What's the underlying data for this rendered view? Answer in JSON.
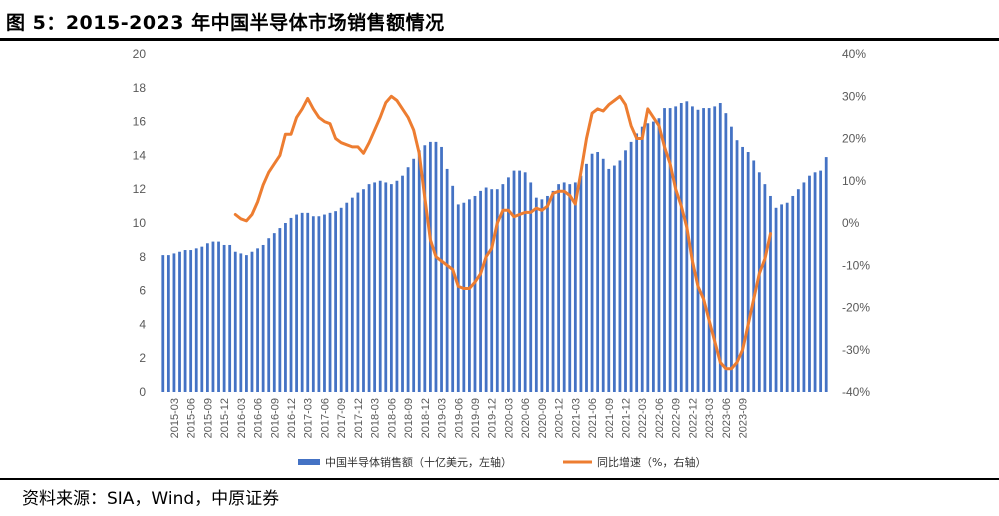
{
  "title": "图 5：2015-2023 年中国半导体市场销售额情况",
  "source": "资料来源：SIA，Wind，中原证券",
  "chart_data": {
    "type": "bar+line",
    "left_axis": {
      "min": 0,
      "max": 20,
      "ticks": [
        "0",
        "2",
        "4",
        "6",
        "8",
        "10",
        "12",
        "14",
        "16",
        "18",
        "20"
      ]
    },
    "right_axis": {
      "min": -0.4,
      "max": 0.4,
      "ticks": [
        "-40%",
        "-30%",
        "-20%",
        "-10%",
        "0%",
        "10%",
        "20%",
        "30%",
        "40%"
      ]
    },
    "x_labels": [
      "2015-03",
      "2015-06",
      "2015-09",
      "2015-12",
      "2016-03",
      "2016-06",
      "2016-09",
      "2016-12",
      "2017-03",
      "2017-06",
      "2017-09",
      "2017-12",
      "2018-03",
      "2018-06",
      "2018-09",
      "2018-12",
      "2019-03",
      "2019-06",
      "2019-09",
      "2019-12",
      "2020-03",
      "2020-06",
      "2020-09",
      "2020-12",
      "2021-03",
      "2021-06",
      "2021-09",
      "2021-12",
      "2022-03",
      "2022-06",
      "2022-09",
      "2022-12",
      "2023-03",
      "2023-06",
      "2023-09"
    ],
    "series": [
      {
        "name": "中国半导体销售额（十亿美元，左轴）",
        "axis": "left",
        "kind": "bar",
        "color": "#4472C4",
        "start": "2015-01",
        "values": [
          8.1,
          8.1,
          8.2,
          8.3,
          8.4,
          8.4,
          8.5,
          8.6,
          8.8,
          8.9,
          8.9,
          8.7,
          8.7,
          8.3,
          8.2,
          8.1,
          8.3,
          8.5,
          8.7,
          9.1,
          9.4,
          9.7,
          10.0,
          10.3,
          10.5,
          10.6,
          10.6,
          10.4,
          10.4,
          10.5,
          10.6,
          10.7,
          10.9,
          11.2,
          11.5,
          11.8,
          12.0,
          12.3,
          12.4,
          12.5,
          12.4,
          12.3,
          12.5,
          12.8,
          13.3,
          13.8,
          14.3,
          14.6,
          14.8,
          14.8,
          14.5,
          13.2,
          12.2,
          11.1,
          11.2,
          11.4,
          11.6,
          11.9,
          12.1,
          12.0,
          12.0,
          12.3,
          12.7,
          13.1,
          13.1,
          13.0,
          12.4,
          11.5,
          11.4,
          11.6,
          11.9,
          12.3,
          12.4,
          12.3,
          12.4,
          12.8,
          13.5,
          14.1,
          14.2,
          13.8,
          13.2,
          13.4,
          13.7,
          14.3,
          14.8,
          15.3,
          15.7,
          15.9,
          16.0,
          16.2,
          16.8,
          16.8,
          16.9,
          17.1,
          17.2,
          16.9,
          16.7,
          16.8,
          16.8,
          16.9,
          17.1,
          16.5,
          15.7,
          14.9,
          14.5,
          14.2,
          13.7,
          13.0,
          12.3,
          11.6,
          10.9,
          11.1,
          11.2,
          11.6,
          12.0,
          12.4,
          12.8,
          13.0,
          13.1,
          13.9
        ]
      },
      {
        "name": "同比增速（%，右轴）",
        "axis": "right",
        "kind": "line",
        "color": "#ED7D31",
        "points": [
          [
            "2016-02",
            0.02
          ],
          [
            "2016-03",
            0.01
          ],
          [
            "2016-04",
            0.005
          ],
          [
            "2016-05",
            0.02
          ],
          [
            "2016-06",
            0.05
          ],
          [
            "2016-07",
            0.09
          ],
          [
            "2016-08",
            0.12
          ],
          [
            "2016-09",
            0.14
          ],
          [
            "2016-10",
            0.16
          ],
          [
            "2016-11",
            0.21
          ],
          [
            "2016-12",
            0.21
          ],
          [
            "2017-01",
            0.25
          ],
          [
            "2017-02",
            0.27
          ],
          [
            "2017-03",
            0.295
          ],
          [
            "2017-04",
            0.27
          ],
          [
            "2017-05",
            0.25
          ],
          [
            "2017-06",
            0.24
          ],
          [
            "2017-07",
            0.235
          ],
          [
            "2017-08",
            0.2
          ],
          [
            "2017-09",
            0.19
          ],
          [
            "2017-10",
            0.185
          ],
          [
            "2017-11",
            0.18
          ],
          [
            "2017-12",
            0.18
          ],
          [
            "2018-01",
            0.165
          ],
          [
            "2018-02",
            0.19
          ],
          [
            "2018-03",
            0.22
          ],
          [
            "2018-04",
            0.25
          ],
          [
            "2018-05",
            0.285
          ],
          [
            "2018-06",
            0.3
          ],
          [
            "2018-07",
            0.29
          ],
          [
            "2018-08",
            0.27
          ],
          [
            "2018-09",
            0.25
          ],
          [
            "2018-10",
            0.22
          ],
          [
            "2018-11",
            0.165
          ],
          [
            "2018-12",
            0.06
          ],
          [
            "2019-01",
            -0.04
          ],
          [
            "2019-02",
            -0.08
          ],
          [
            "2019-03",
            -0.09
          ],
          [
            "2019-04",
            -0.1
          ],
          [
            "2019-05",
            -0.11
          ],
          [
            "2019-06",
            -0.15
          ],
          [
            "2019-07",
            -0.155
          ],
          [
            "2019-08",
            -0.155
          ],
          [
            "2019-09",
            -0.14
          ],
          [
            "2019-10",
            -0.12
          ],
          [
            "2019-11",
            -0.08
          ],
          [
            "2019-12",
            -0.06
          ],
          [
            "2020-01",
            0.0
          ],
          [
            "2020-02",
            0.03
          ],
          [
            "2020-03",
            0.03
          ],
          [
            "2020-04",
            0.015
          ],
          [
            "2020-05",
            0.02
          ],
          [
            "2020-06",
            0.025
          ],
          [
            "2020-07",
            0.025
          ],
          [
            "2020-08",
            0.035
          ],
          [
            "2020-09",
            0.03
          ],
          [
            "2020-10",
            0.04
          ],
          [
            "2020-11",
            0.07
          ],
          [
            "2020-12",
            0.075
          ],
          [
            "2021-01",
            0.075
          ],
          [
            "2021-02",
            0.065
          ],
          [
            "2021-03",
            0.045
          ],
          [
            "2021-04",
            0.12
          ],
          [
            "2021-05",
            0.2
          ],
          [
            "2021-06",
            0.26
          ],
          [
            "2021-07",
            0.27
          ],
          [
            "2021-08",
            0.265
          ],
          [
            "2021-09",
            0.28
          ],
          [
            "2021-10",
            0.29
          ],
          [
            "2021-11",
            0.3
          ],
          [
            "2021-12",
            0.28
          ],
          [
            "2022-01",
            0.23
          ],
          [
            "2022-02",
            0.2
          ],
          [
            "2022-03",
            0.2
          ],
          [
            "2022-04",
            0.27
          ],
          [
            "2022-05",
            0.25
          ],
          [
            "2022-06",
            0.23
          ],
          [
            "2022-07",
            0.18
          ],
          [
            "2022-08",
            0.14
          ],
          [
            "2022-09",
            0.08
          ],
          [
            "2022-10",
            0.04
          ],
          [
            "2022-11",
            -0.01
          ],
          [
            "2022-12",
            -0.09
          ],
          [
            "2023-01",
            -0.15
          ],
          [
            "2023-02",
            -0.18
          ],
          [
            "2023-03",
            -0.23
          ],
          [
            "2023-04",
            -0.28
          ],
          [
            "2023-05",
            -0.33
          ],
          [
            "2023-06",
            -0.345
          ],
          [
            "2023-07",
            -0.345
          ],
          [
            "2023-08",
            -0.33
          ],
          [
            "2023-09",
            -0.3
          ],
          [
            "2023-10",
            -0.24
          ],
          [
            "2023-11",
            -0.18
          ],
          [
            "2023-12",
            -0.12
          ],
          [
            "2024-01",
            -0.085
          ],
          [
            "2024-02",
            -0.025
          ]
        ]
      }
    ]
  }
}
